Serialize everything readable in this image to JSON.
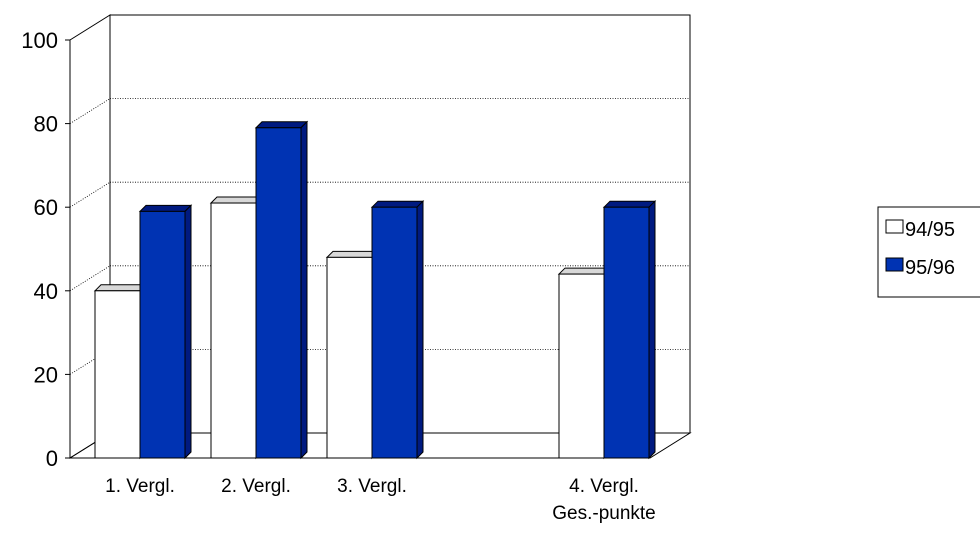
{
  "chart_data": {
    "type": "bar",
    "style": "3d-column",
    "categories": [
      [
        "1. Vergl."
      ],
      [
        "2. Vergl."
      ],
      [
        "3. Vergl."
      ],
      [],
      [
        "4. Vergl.",
        "Ges.-punkte"
      ]
    ],
    "series": [
      {
        "name": "94/95",
        "values": [
          40,
          61,
          48,
          null,
          44
        ],
        "color": "#ffffff"
      },
      {
        "name": "95/96",
        "values": [
          59,
          79,
          60,
          null,
          60
        ],
        "color": "#0033b3"
      }
    ],
    "ylim": [
      0,
      100
    ],
    "yticks": [
      "0",
      "20",
      "40",
      "60",
      "80",
      "100"
    ],
    "grid": true,
    "legend_position": "right",
    "title": "",
    "xlabel": "",
    "ylabel": ""
  }
}
